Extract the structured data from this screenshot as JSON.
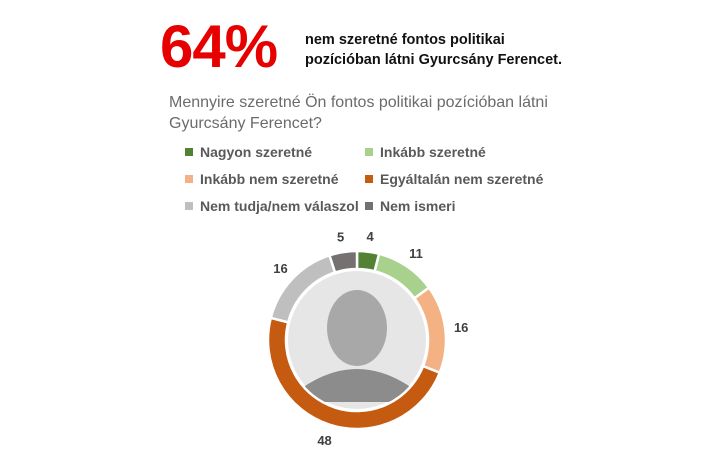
{
  "headline": {
    "percent": "64%",
    "text_line1": "nem szeretné fontos politikai",
    "text_line2": "pozícióban látni Gyurcsány Ferencet."
  },
  "question": "Mennyire szeretné Ön fontos politikai pozícióban látni Gyurcsány Ferencet?",
  "chart_data": {
    "type": "donut",
    "categories": [
      "Nagyon szeretné",
      "Inkább szeretné",
      "Inkább nem szeretné",
      "Egyáltalán nem szeretné",
      "Nem tudja/nem válaszol",
      "Nem ismeri"
    ],
    "values": [
      4,
      11,
      16,
      48,
      16,
      5
    ],
    "labels": [
      "4",
      "11",
      "16",
      "48",
      "16",
      "5"
    ],
    "colors": [
      "#548235",
      "#a9d18e",
      "#f4b183",
      "#c55a11",
      "#bfbfbf",
      "#767171"
    ],
    "legend_placement": "top",
    "center_image": "portrait photo (grayscale)"
  }
}
